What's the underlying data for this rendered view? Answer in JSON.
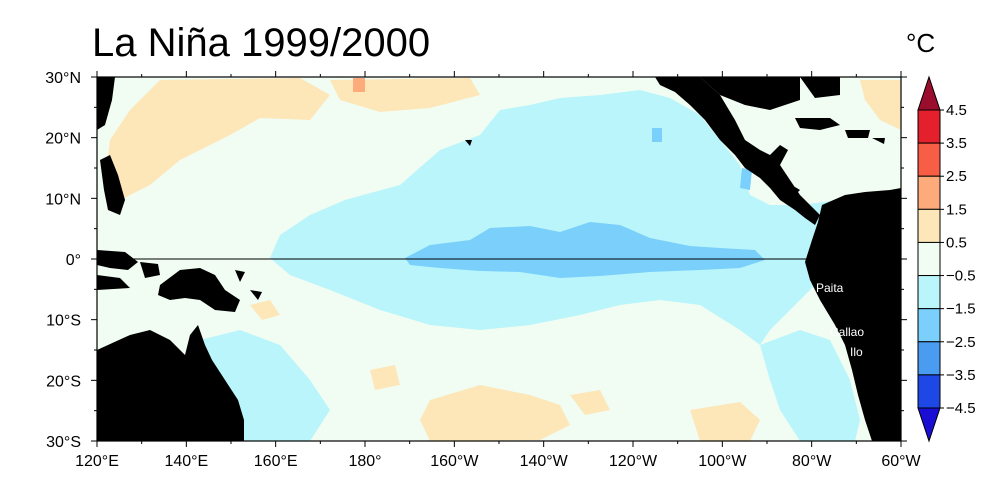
{
  "title": "La Niña 1999/2000",
  "unit": "°C",
  "map": {
    "region": "Tropical Pacific",
    "lon_range": [
      120,
      300
    ],
    "lat_range": [
      -30,
      30
    ],
    "x_ticks": [
      "120°E",
      "140°E",
      "160°E",
      "180°",
      "160°W",
      "140°W",
      "120°W",
      "100°W",
      "80°W",
      "60°W"
    ],
    "y_ticks": [
      "30°N",
      "20°N",
      "10°N",
      "0°",
      "10°S",
      "20°S",
      "30°S"
    ],
    "equator_line": true,
    "places": [
      "Paita",
      "Callao",
      "Ilo"
    ]
  },
  "colorbar": {
    "tick_labels": [
      "4.5",
      "3.5",
      "2.5",
      "1.5",
      "0.5",
      "−0.5",
      "−1.5",
      "−2.5",
      "−3.5",
      "−4.5"
    ],
    "colors": [
      "#9b0d2c",
      "#e3202b",
      "#f85e45",
      "#fdab7a",
      "#fde6b8",
      "#f1fdf3",
      "#b9f5fa",
      "#7ad0fb",
      "#4a9cf0",
      "#1d48e6",
      "#1b0ed4"
    ]
  },
  "colors": {
    "land": "#000000",
    "ocean_neutral": "#f1fdf3",
    "anomaly_-0.5_to_-1.5": "#b9f5fa",
    "anomaly_-1.5_to_-2.5": "#7ad0fb",
    "anomaly_0.5_to_1.5": "#fde6b8",
    "anomaly_1.5_to_2.5": "#fdab7a"
  }
}
